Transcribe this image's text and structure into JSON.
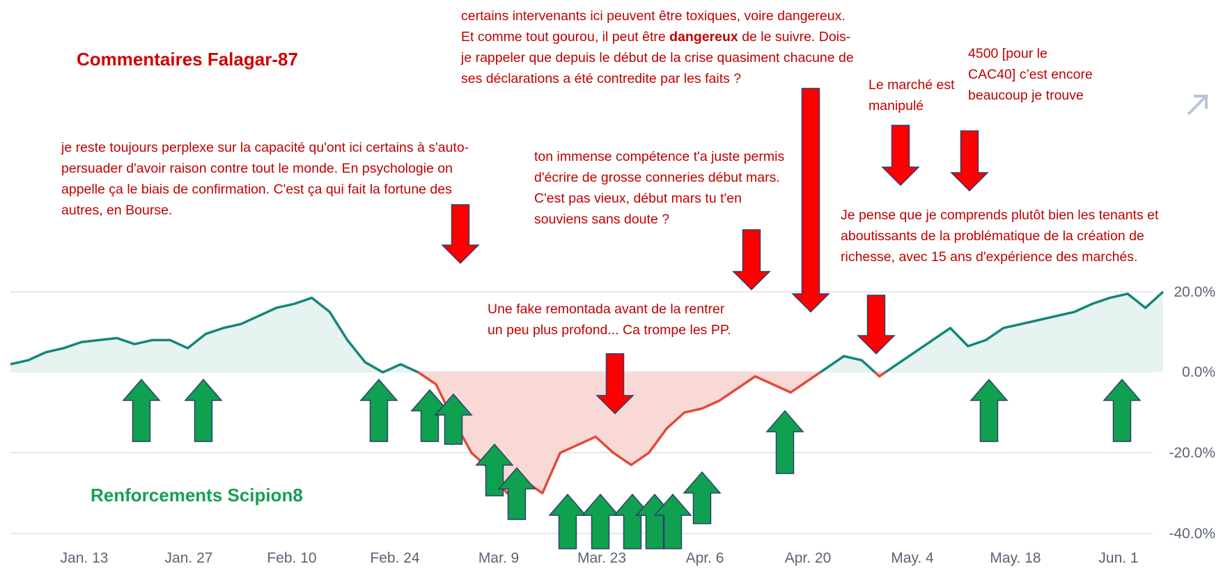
{
  "headings": {
    "comments": "Commentaires Falagar-87",
    "reinforcements": "Renforcements Scipion8"
  },
  "notes": {
    "n1": "je reste toujours perplexe sur la capacité qu'ont ici certains à s'auto-persuader d'avoir raison contre tout le monde. En psychologie on appelle ça le biais de confirmation. C'est ça qui fait la fortune des autres, en Bourse.",
    "n2_part1": "certains intervenants ici peuvent être toxiques, voire dangereux. Et comme tout gourou, il peut être ",
    "n2_bold": "dangereux",
    "n2_part2": " de le suivre. Dois-je rappeler que depuis le début de la crise quasiment chacune de ses déclarations a été contredite par les faits ?",
    "n3": "ton immense compétence t'a juste permis d'écrire de grosse conneries début mars. C'est pas vieux, début mars tu t'en souviens sans doute ?",
    "n4": "Le marché est manipulé",
    "n5": "4500 [pour le CAC40] c’est encore beaucoup je trouve",
    "n6": "Je pense que je comprends plutôt bien les tenants et aboutissants de la problématique de la création de richesse, avec 15 ans d'expérience des marchés.",
    "n7": "Une fake remontada avant de la rentrer un peu plus profond... Ca trompe les PP."
  },
  "expand_icon": "diagonal-arrow-icon",
  "colors": {
    "positive_line": "#13867a",
    "positive_fill": "#e6f3f1",
    "negative_line": "#e24a3b",
    "negative_fill": "#f8d9d5",
    "down_arrow": "#ff0000",
    "up_arrow": "#0fa050",
    "comment_text": "#c00000"
  },
  "chart_data": {
    "type": "area",
    "x_ticks": [
      "Jan. 13",
      "Jan. 27",
      "Feb. 10",
      "Feb. 24",
      "Mar. 9",
      "Mar. 23",
      "Apr. 6",
      "Apr. 20",
      "May. 4",
      "May. 18",
      "Jun. 1"
    ],
    "y_ticks": [
      "20.0%",
      "0.0%",
      "-20.0%",
      "-40.0%"
    ],
    "ylim": [
      -40,
      20
    ],
    "grid": true,
    "series": [
      {
        "x": [
          "Jan. 6",
          "Jan. 8",
          "Jan. 10",
          "Jan. 13",
          "Jan. 15",
          "Jan. 17",
          "Jan. 20",
          "Jan. 22",
          "Jan. 24",
          "Jan. 27",
          "Jan. 29",
          "Jan. 31",
          "Feb. 3",
          "Feb. 5",
          "Feb. 7",
          "Feb. 10",
          "Feb. 12",
          "Feb. 14",
          "Feb. 17",
          "Feb. 19",
          "Feb. 21",
          "Feb. 24",
          "Feb. 26",
          "Feb. 28",
          "Mar. 2",
          "Mar. 4",
          "Mar. 6",
          "Mar. 9",
          "Mar. 11",
          "Mar. 13",
          "Mar. 16",
          "Mar. 18",
          "Mar. 20",
          "Mar. 23",
          "Mar. 25",
          "Mar. 27",
          "Mar. 30",
          "Apr. 1",
          "Apr. 3",
          "Apr. 6",
          "Apr. 8",
          "Apr. 10",
          "Apr. 13",
          "Apr. 15",
          "Apr. 17",
          "Apr. 20",
          "Apr. 22",
          "Apr. 24",
          "Apr. 27",
          "Apr. 29",
          "May. 1",
          "May. 4",
          "May. 6",
          "May. 8",
          "May. 11",
          "May. 13",
          "May. 15",
          "May. 18",
          "May. 20",
          "May. 22",
          "May. 25",
          "May. 27",
          "May. 29",
          "Jun. 1",
          "Jun. 3",
          "Jun. 5"
        ],
        "values": [
          2.0,
          3.0,
          5.0,
          6.0,
          7.5,
          8.0,
          8.5,
          7.0,
          8.0,
          8.0,
          6.0,
          9.5,
          11.0,
          12.0,
          14.0,
          16.0,
          17.0,
          18.5,
          15.0,
          8.0,
          2.5,
          0.0,
          2.0,
          0.0,
          -3.0,
          -12.0,
          -20.0,
          -24.0,
          -30.0,
          -27.0,
          -30.0,
          -20.0,
          -18.0,
          -16.0,
          -20.0,
          -23.0,
          -20.0,
          -14.0,
          -10.0,
          -9.0,
          -7.0,
          -4.0,
          -1.0,
          -3.0,
          -5.0,
          -2.0,
          1.0,
          4.0,
          3.0,
          -1.0,
          2.0,
          5.0,
          8.0,
          11.0,
          6.5,
          8.0,
          11.0,
          12.0,
          13.0,
          14.0,
          15.0,
          17.0,
          18.5,
          19.5,
          16.0,
          20.0
        ]
      }
    ],
    "zero_line": 0
  }
}
